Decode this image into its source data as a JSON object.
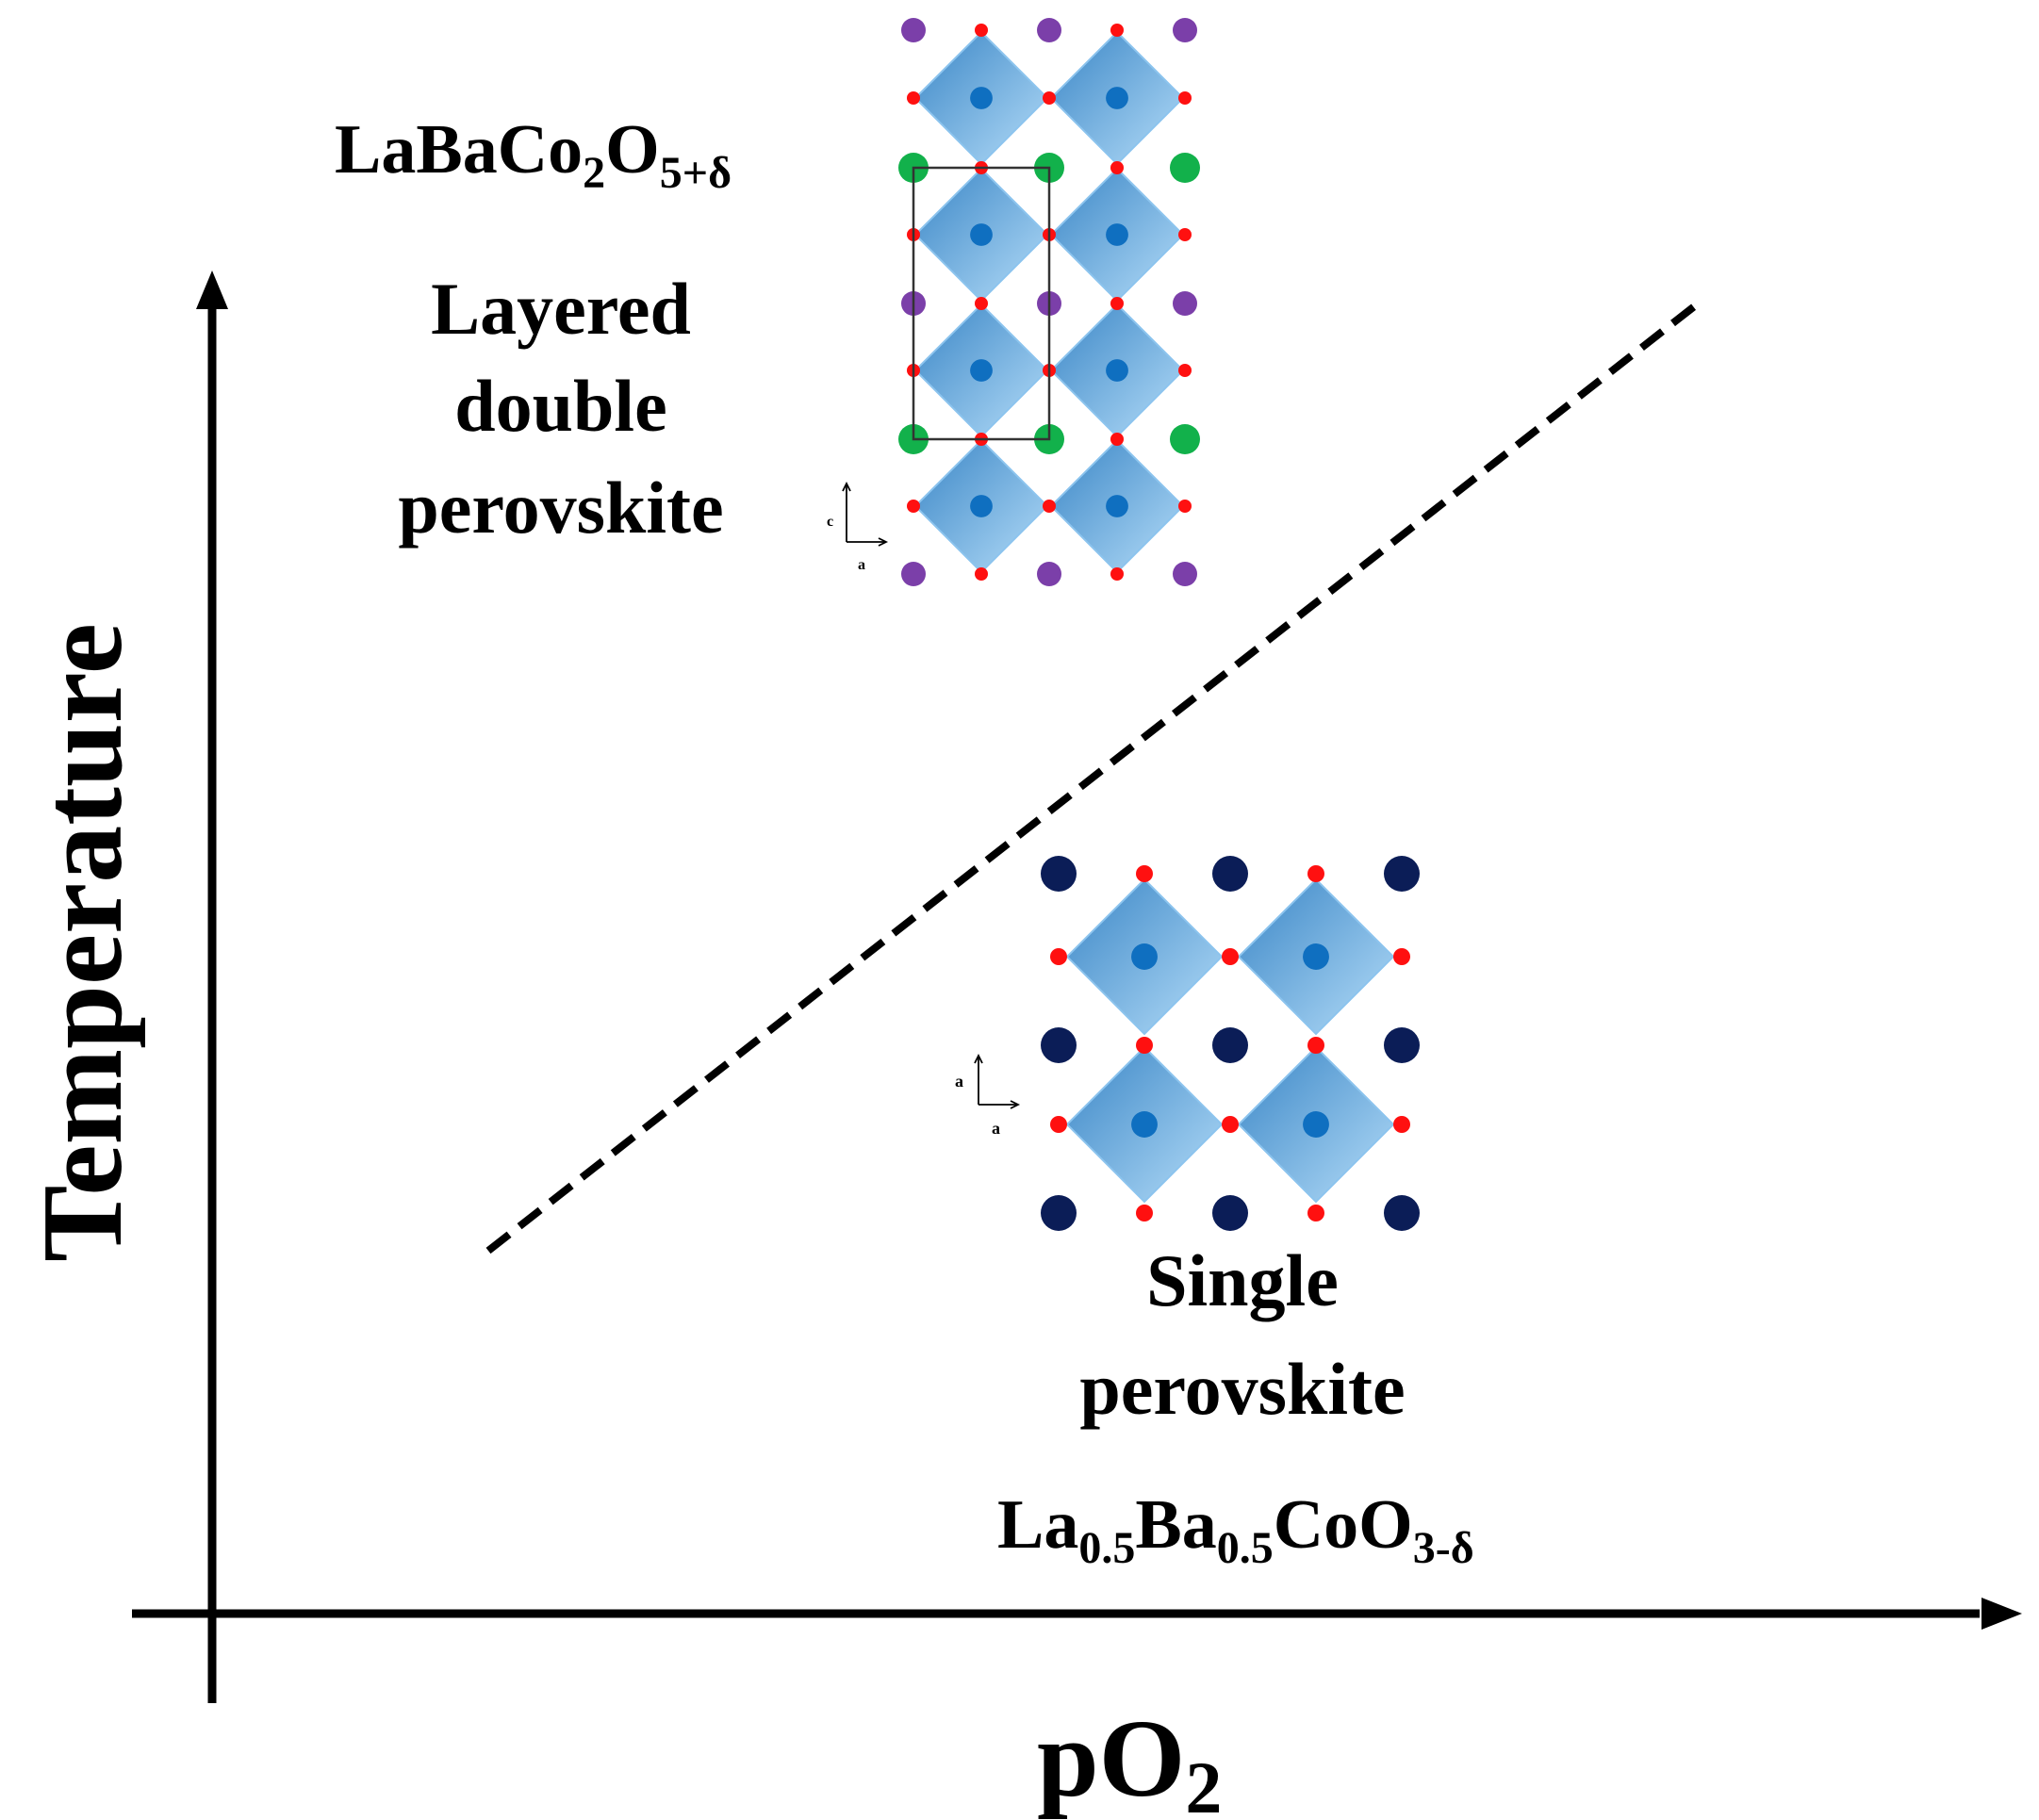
{
  "axes": {
    "y_label": "Temperature",
    "x_label_main": "pO",
    "x_label_sub": "2"
  },
  "regions": {
    "upper": {
      "formula": {
        "base1": "LaBaCo",
        "sub1": "2",
        "base2": "O",
        "sub2": "5+δ"
      },
      "name_lines": [
        "Layered",
        "double",
        "perovskite"
      ],
      "axis_marks": {
        "vertical": "c",
        "horizontal": "a"
      }
    },
    "lower": {
      "name_lines": [
        "Single",
        "perovskite"
      ],
      "formula": {
        "base1": "La",
        "sub1": "0.5",
        "base2": "Ba",
        "sub2": "0.5",
        "base3": "CoO",
        "sub3": "3-δ"
      },
      "axis_marks": {
        "vertical": "a",
        "horizontal": "a"
      }
    }
  },
  "colors": {
    "octahedron_light": "#b4dcf8",
    "octahedron_dark": "#3a86c6",
    "cobalt": "#0f6fc0",
    "oxygen": "#ff1010",
    "lanthanum": "#7b3fa9",
    "barium": "#12b14b",
    "a_site_mixed": "#0b1d57"
  }
}
